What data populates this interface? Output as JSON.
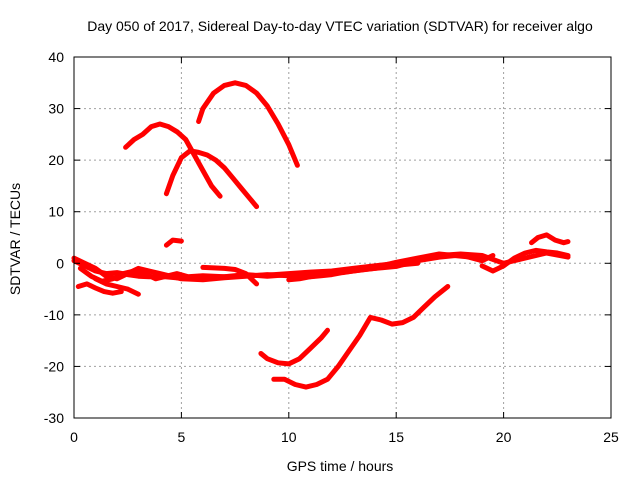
{
  "chart_data": {
    "type": "line",
    "title": "Day 050 of 2017, Sidereal Day-to-day VTEC variation (SDTVAR) for receiver algo",
    "xlabel": "GPS time / hours",
    "ylabel": "SDTVAR / TECUs",
    "xlim": [
      0,
      25
    ],
    "ylim": [
      -30,
      40
    ],
    "xticks": [
      0,
      5,
      10,
      15,
      20,
      25
    ],
    "yticks": [
      -30,
      -20,
      -10,
      0,
      10,
      20,
      30,
      40
    ],
    "grid": true,
    "color": "#ff0000",
    "series": [
      {
        "name": "arc-main-a",
        "x": [
          0.0,
          0.5,
          1.0,
          1.5,
          2.0,
          2.5,
          3.0,
          3.5,
          4.0,
          4.5,
          5.0,
          6.0,
          7.0,
          8.0,
          9.0,
          10.0,
          11.0,
          12.0,
          13.0,
          14.0,
          15.0,
          16.0,
          17.0,
          18.0,
          19.0,
          20.0,
          21.0,
          22.0,
          23.0
        ],
        "y": [
          0.5,
          -0.5,
          -1.5,
          -2.0,
          -1.8,
          -2.2,
          -2.5,
          -2.6,
          -2.5,
          -2.7,
          -2.9,
          -2.8,
          -2.6,
          -2.4,
          -2.3,
          -2.0,
          -1.7,
          -1.5,
          -1.0,
          -0.5,
          0.0,
          0.8,
          1.5,
          1.8,
          1.5,
          0.0,
          1.0,
          2.0,
          1.2
        ]
      },
      {
        "name": "arc-main-b",
        "x": [
          0.0,
          0.5,
          1.0,
          1.5,
          2.0,
          2.5,
          3.0,
          3.5,
          4.0,
          4.5,
          5.0,
          6.0,
          7.0,
          8.0,
          9.0,
          10.0,
          11.0,
          12.0,
          13.0,
          14.0,
          15.0,
          16.0,
          17.0,
          18.0,
          19.0,
          19.5
        ],
        "y": [
          1.0,
          0.0,
          -1.0,
          -2.5,
          -3.0,
          -2.0,
          -1.0,
          -1.5,
          -2.0,
          -2.5,
          -3.0,
          -3.2,
          -2.8,
          -2.5,
          -2.2,
          -2.4,
          -2.6,
          -2.0,
          -1.5,
          -1.0,
          -0.6,
          0.5,
          1.2,
          1.6,
          0.5,
          1.5
        ]
      },
      {
        "name": "arc-main-c",
        "x": [
          0.3,
          0.8,
          1.3,
          1.8,
          2.3,
          2.8,
          3.3,
          3.8,
          4.3,
          4.8,
          5.3,
          6.0,
          7.0,
          8.0,
          9.0,
          10.0,
          11.0,
          12.0,
          13.0,
          14.0,
          15.0,
          16.0,
          17.0,
          18.0,
          19.0
        ],
        "y": [
          -1.0,
          -2.5,
          -3.5,
          -3.0,
          -2.0,
          -1.5,
          -2.0,
          -3.0,
          -2.5,
          -2.0,
          -2.6,
          -2.4,
          -2.6,
          -2.2,
          -2.5,
          -2.2,
          -2.0,
          -1.8,
          -1.2,
          -0.8,
          0.2,
          1.0,
          1.8,
          1.4,
          1.0
        ]
      },
      {
        "name": "arc-main-d",
        "x": [
          10.0,
          10.5,
          11.0,
          11.5,
          12.0,
          12.5,
          13.0,
          13.5,
          14.0,
          14.5,
          15.0,
          15.5,
          16.0
        ],
        "y": [
          -3.2,
          -3.0,
          -2.6,
          -2.4,
          -2.2,
          -1.8,
          -1.5,
          -1.2,
          -1.0,
          -0.7,
          -0.4,
          -0.2,
          0.0
        ]
      },
      {
        "name": "arc-main-e",
        "x": [
          6.0,
          7.0,
          7.5,
          8.0,
          8.5
        ],
        "y": [
          -0.8,
          -1.0,
          -1.2,
          -2.0,
          -4.0
        ]
      },
      {
        "name": "arc-low-left-a",
        "x": [
          0.2,
          0.6,
          1.0,
          1.4,
          1.8,
          2.2
        ],
        "y": [
          -4.5,
          -4.0,
          -4.8,
          -5.5,
          -5.8,
          -5.5
        ]
      },
      {
        "name": "arc-low-left-b",
        "x": [
          1.0,
          1.5,
          2.0,
          2.5,
          3.0
        ],
        "y": [
          -3.0,
          -4.0,
          -4.5,
          -5.0,
          -6.0
        ]
      },
      {
        "name": "arc-late-a",
        "x": [
          19.0,
          19.5,
          20.0,
          20.5,
          21.0,
          21.5,
          22.0,
          22.5,
          23.0
        ],
        "y": [
          -0.5,
          -1.5,
          -0.5,
          1.0,
          2.0,
          2.5,
          2.2,
          2.0,
          1.5
        ]
      },
      {
        "name": "arc-late-bump",
        "x": [
          21.3,
          21.6,
          22.0,
          22.4,
          22.8,
          23.0
        ],
        "y": [
          4.0,
          5.0,
          5.5,
          4.5,
          4.0,
          4.2
        ]
      },
      {
        "name": "arc-small-blip",
        "x": [
          4.3,
          4.6,
          5.0
        ],
        "y": [
          3.5,
          4.5,
          4.3
        ]
      },
      {
        "name": "arc-hump-35",
        "x": [
          5.8,
          6.0,
          6.5,
          7.0,
          7.5,
          8.0,
          8.5,
          9.0,
          9.5,
          10.0,
          10.4
        ],
        "y": [
          27.5,
          30.0,
          33.0,
          34.5,
          35.0,
          34.5,
          33.0,
          30.5,
          27.0,
          23.0,
          19.0
        ]
      },
      {
        "name": "arc-hump-27",
        "x": [
          2.4,
          2.8,
          3.2,
          3.6,
          4.0,
          4.4,
          4.8,
          5.2,
          5.6,
          6.0,
          6.4,
          6.8
        ],
        "y": [
          22.5,
          24.0,
          25.0,
          26.5,
          27.0,
          26.5,
          25.5,
          24.0,
          21.0,
          18.0,
          15.0,
          13.0
        ]
      },
      {
        "name": "arc-hump-22",
        "x": [
          4.3,
          4.6,
          5.0,
          5.4,
          5.8,
          6.2,
          6.6,
          7.0,
          7.4,
          7.8,
          8.2,
          8.5
        ],
        "y": [
          13.5,
          17.0,
          20.5,
          21.8,
          21.5,
          21.0,
          20.0,
          18.5,
          16.5,
          14.5,
          12.5,
          11.0
        ]
      },
      {
        "name": "arc-neg-20",
        "x": [
          8.7,
          9.0,
          9.5,
          10.0,
          10.5,
          11.0,
          11.5,
          11.8
        ],
        "y": [
          -17.5,
          -18.5,
          -19.3,
          -19.5,
          -18.5,
          -16.5,
          -14.5,
          -13.0
        ]
      },
      {
        "name": "arc-neg-24",
        "x": [
          9.3,
          9.8,
          10.3,
          10.8,
          11.3,
          11.8,
          12.3,
          12.8,
          13.3,
          13.8,
          14.3,
          14.8,
          15.3,
          15.8,
          16.3,
          16.8,
          17.4
        ],
        "y": [
          -22.5,
          -22.5,
          -23.5,
          -24.0,
          -23.5,
          -22.5,
          -20.0,
          -17.0,
          -14.0,
          -10.5,
          -11.0,
          -11.8,
          -11.5,
          -10.5,
          -8.5,
          -6.5,
          -4.5
        ]
      }
    ]
  }
}
